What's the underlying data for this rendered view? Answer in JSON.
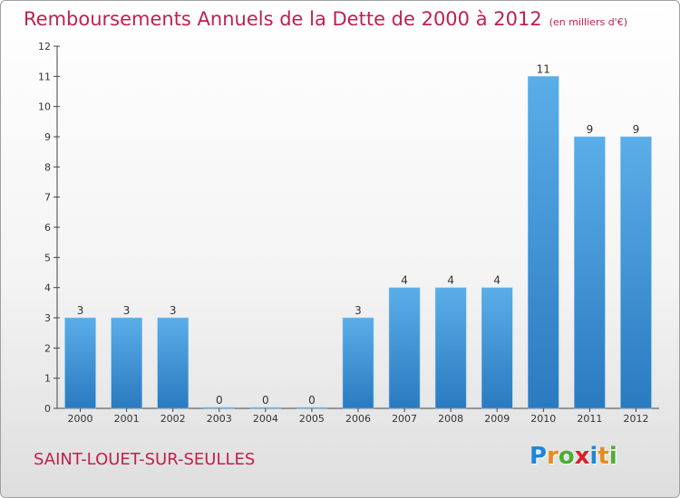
{
  "page": {
    "title": "Remboursements Annuels de la Dette de 2000 à 2012",
    "subtitle": "(en milliers d'€)",
    "commune": "SAINT-LOUET-SUR-SEULLES",
    "logo": {
      "letters": [
        "P",
        "r",
        "o",
        "x",
        "i",
        "t",
        "i"
      ],
      "colors": [
        "#1e88d6",
        "#e98a1a",
        "#4bae32",
        "#d8222a",
        "#1e88d6",
        "#e98a1a",
        "#4bae32"
      ]
    }
  },
  "chart_data": {
    "type": "bar",
    "categories": [
      "2000",
      "2001",
      "2002",
      "2003",
      "2004",
      "2005",
      "2006",
      "2007",
      "2008",
      "2009",
      "2010",
      "2011",
      "2012"
    ],
    "values": [
      3,
      3,
      3,
      0,
      0,
      0,
      3,
      4,
      4,
      4,
      11,
      9,
      9
    ],
    "data_labels": [
      "3",
      "3",
      "3",
      "0",
      "0",
      "0",
      "3",
      "4",
      "4",
      "4",
      "11",
      "9",
      "9"
    ],
    "yticks": [
      "0",
      "1",
      "2",
      "3",
      "4",
      "5",
      "6",
      "7",
      "8",
      "9",
      "10",
      "11",
      "12"
    ],
    "ylim": [
      0,
      12
    ],
    "title": "Remboursements Annuels de la Dette de 2000 à 2012",
    "xlabel": "",
    "ylabel": "",
    "grid": false,
    "legend": "none",
    "colors": {
      "bar_light": "#5aaee8",
      "bar_dark": "#2a7ac0",
      "axis": "#444444",
      "label": "#333333"
    }
  }
}
